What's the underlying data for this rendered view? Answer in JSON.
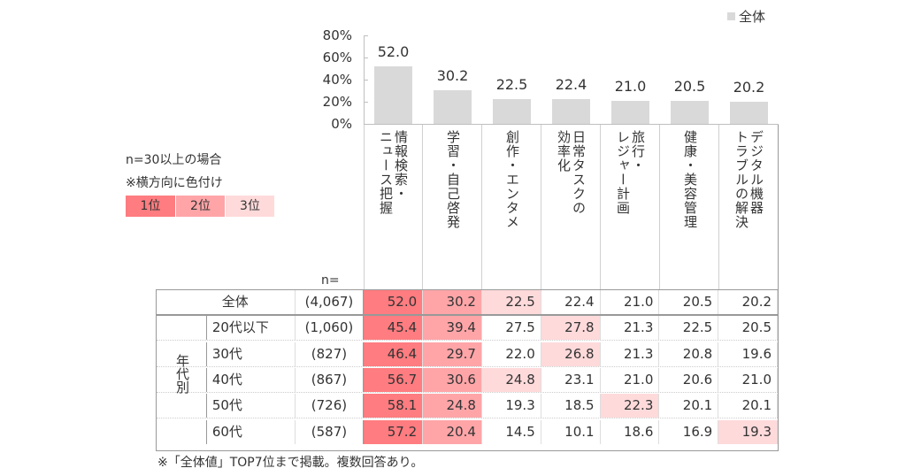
{
  "legend": {
    "label": "全体",
    "swatch_color": "#d9d9d9"
  },
  "note": {
    "line1": "n=30以上の場合",
    "line2": "※横方向に色付け",
    "ranks": [
      {
        "label": "1位",
        "color": "#ff7c80"
      },
      {
        "label": "2位",
        "color": "#ffa5a8"
      },
      {
        "label": "3位",
        "color": "#ffdadb"
      }
    ]
  },
  "n_label": "n=",
  "footer": "※「全体値」TOP7位まで掲載。複数回答あり。",
  "table": {
    "group_label": "年代別",
    "rows": [
      {
        "label": "全体",
        "n": "(4,067)",
        "values": [
          "52.0",
          "30.2",
          "22.5",
          "22.4",
          "21.0",
          "20.5",
          "20.2"
        ],
        "ranks": [
          1,
          2,
          3,
          0,
          0,
          0,
          0
        ]
      },
      {
        "label": "20代以下",
        "n": "(1,060)",
        "values": [
          "45.4",
          "39.4",
          "27.5",
          "27.8",
          "21.3",
          "22.5",
          "20.5"
        ],
        "ranks": [
          1,
          2,
          0,
          3,
          0,
          0,
          0
        ]
      },
      {
        "label": "30代",
        "n": "(827)",
        "values": [
          "46.4",
          "29.7",
          "22.0",
          "26.8",
          "21.3",
          "20.8",
          "19.6"
        ],
        "ranks": [
          1,
          2,
          0,
          3,
          0,
          0,
          0
        ]
      },
      {
        "label": "40代",
        "n": "(867)",
        "values": [
          "56.7",
          "30.6",
          "24.8",
          "23.1",
          "21.0",
          "20.6",
          "21.0"
        ],
        "ranks": [
          1,
          2,
          3,
          0,
          0,
          0,
          0
        ]
      },
      {
        "label": "50代",
        "n": "(726)",
        "values": [
          "58.1",
          "24.8",
          "19.3",
          "18.5",
          "22.3",
          "20.1",
          "20.1"
        ],
        "ranks": [
          1,
          2,
          0,
          0,
          3,
          0,
          0
        ]
      },
      {
        "label": "60代",
        "n": "(587)",
        "values": [
          "57.2",
          "20.4",
          "14.5",
          "10.1",
          "18.6",
          "16.9",
          "19.3"
        ],
        "ranks": [
          1,
          2,
          0,
          0,
          0,
          0,
          3
        ]
      }
    ]
  },
  "chart_data": {
    "type": "bar",
    "title": "",
    "xlabel": "",
    "ylabel": "",
    "ylim": [
      0,
      80
    ],
    "yticks": [
      "80%",
      "60%",
      "40%",
      "20%",
      "0%"
    ],
    "grid": false,
    "legend_position": "top-right",
    "categories": [
      "情報検索・ニュース把握",
      "学習・自己啓発",
      "創作・エンタメ",
      "日常タスクの効率化",
      "旅行・レジャー計画",
      "健康・美容管理",
      "デジタル機器トラブルの解決"
    ],
    "category_lines": [
      [
        "情報検索・",
        "ニュース把握"
      ],
      [
        "学習・自己啓発"
      ],
      [
        "創作・エンタメ"
      ],
      [
        "日常タスクの",
        "効率化"
      ],
      [
        "旅行・",
        "レジャー計画"
      ],
      [
        "健康・美容管理"
      ],
      [
        "デジタル機器",
        "トラブルの解決"
      ]
    ],
    "series": [
      {
        "name": "全体",
        "color": "#d9d9d9",
        "values": [
          52.0,
          30.2,
          22.5,
          22.4,
          21.0,
          20.5,
          20.2
        ]
      }
    ],
    "value_labels": [
      "52.0",
      "30.2",
      "22.5",
      "22.4",
      "21.0",
      "20.5",
      "20.2"
    ]
  }
}
